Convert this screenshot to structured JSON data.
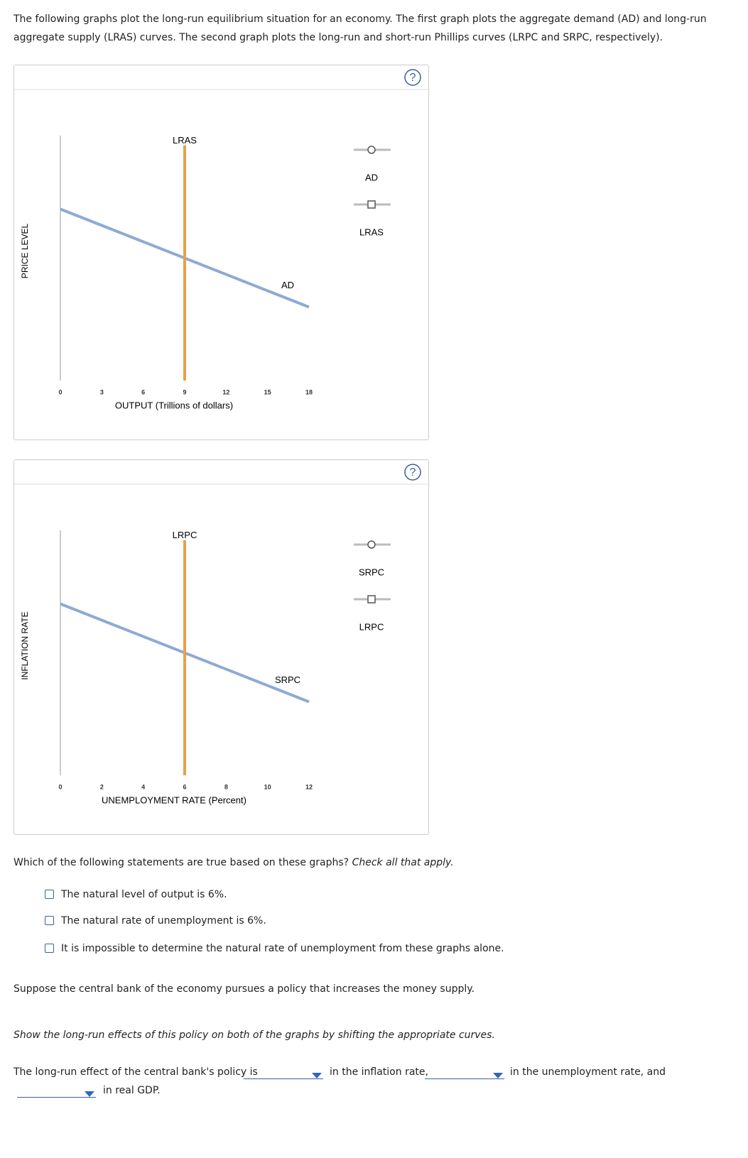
{
  "intro": "The following graphs plot the long-run equilibrium situation for an economy. The first graph plots the aggregate demand (AD) and long-run aggregate supply (LRAS) curves. The second graph plots the long-run and short-run Phillips curves (LRPC and SRPC, respectively).",
  "graphs": [
    {
      "type": "line",
      "y_label": "PRICE LEVEL",
      "x_label": "OUTPUT (Trillions of dollars)",
      "xlim": [
        0,
        18
      ],
      "xticks": [
        0,
        3,
        6,
        9,
        12,
        15,
        18
      ],
      "ylim": [
        0,
        100
      ],
      "series": [
        {
          "name": "AD",
          "color": "#8eaad4",
          "x": [
            0,
            18
          ],
          "values": [
            70,
            30
          ]
        },
        {
          "name": "LRAS",
          "color": "#e8a04a",
          "x": [
            9,
            9
          ],
          "values": [
            0,
            96
          ]
        }
      ]
    },
    {
      "type": "line",
      "y_label": "INFLATION RATE",
      "x_label": "UNEMPLOYMENT RATE (Percent)",
      "xlim": [
        0,
        12
      ],
      "xticks": [
        0,
        2,
        4,
        6,
        8,
        10,
        12
      ],
      "ylim": [
        0,
        100
      ],
      "series": [
        {
          "name": "SRPC",
          "color": "#8eaad4",
          "x": [
            0,
            12
          ],
          "values": [
            70,
            30
          ]
        },
        {
          "name": "LRPC",
          "color": "#e8a04a",
          "x": [
            6,
            6
          ],
          "values": [
            0,
            96
          ]
        }
      ]
    }
  ],
  "question": "Which of the following statements are true based on these graphs?",
  "question_hint": "Check all that apply.",
  "options": [
    "The natural level of output is 6%.",
    "The natural rate of unemployment is 6%.",
    "It is impossible to determine the natural rate of unemployment from these graphs alone."
  ],
  "scenario": "Suppose the central bank of the economy pursues a policy that increases the money supply.",
  "instruction": "Show the long-run effects of this policy on both of the graphs by shifting the appropriate curves.",
  "answer_sentence": {
    "part1": "The long-run effect of the central bank's policy is",
    "part2": "in the inflation rate,",
    "part3": "in the unemployment rate, and",
    "part4": "in real GDP."
  }
}
